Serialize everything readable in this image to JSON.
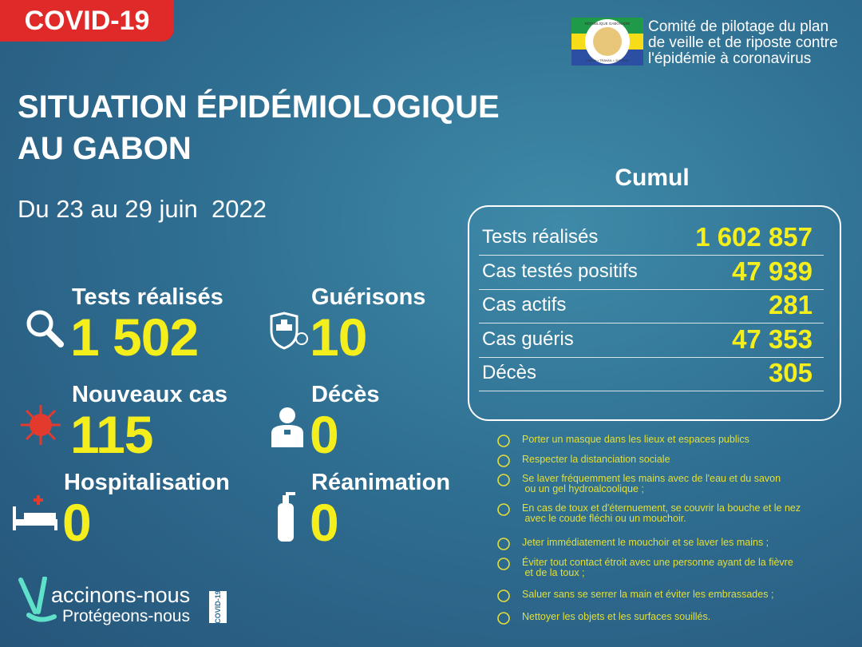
{
  "header": {
    "badge": "COVID-19",
    "seal": {
      "top": "RÉPUBLIQUE GABONAISE",
      "bottom": "UNION • TRAVAIL • JUSTICE"
    },
    "org": [
      "Comité de pilotage du plan",
      "de veille et de riposte contre",
      "l'épidémie à coronavirus"
    ]
  },
  "title": [
    "SITUATION ÉPIDÉMIOLOGIQUE",
    "AU GABON"
  ],
  "period": "Du 23 au 29 juin  2022",
  "stats": [
    {
      "label": "Tests réalisés",
      "value": "1 502"
    },
    {
      "label": "Guérisons",
      "value": "10"
    },
    {
      "label": "Nouveaux cas",
      "value": "115"
    },
    {
      "label": "Décès",
      "value": "0"
    },
    {
      "label": "Hospitalisation",
      "value": "0"
    },
    {
      "label": "Réanimation",
      "value": "0"
    }
  ],
  "cumul": {
    "title": "Cumul",
    "rows": [
      [
        "Tests réalisés",
        "1 602 857"
      ],
      [
        "Cas testés positifs",
        "47 939"
      ],
      [
        "Cas actifs",
        "281"
      ],
      [
        "Cas guéris",
        "47 353"
      ],
      [
        "Décès",
        "305"
      ]
    ]
  },
  "tips": [
    [
      "Porter un masque dans les lieux et espaces publics"
    ],
    [
      "Respecter la distanciation sociale"
    ],
    [
      "Se laver fréquemment les mains avec de l'eau et du savon",
      " ou un gel hydroalcoolique ;"
    ],
    [
      "En cas de toux et d'éternuement, se couvrir la bouche et le nez",
      " avec le coude fléchi ou un mouchoir."
    ],
    [
      "Jeter immédiatement le mouchoir et se laver les mains ;"
    ],
    [
      "Éviter tout contact étroit avec une personne ayant de la fièvre",
      " et de la toux ;"
    ],
    [
      "Saluer sans se serrer la main et éviter les embrassades ;"
    ],
    [
      "Nettoyer les objets et les surfaces souillés."
    ]
  ],
  "footer": {
    "line1": "accinons-nous",
    "line2": "Protégeons-nous",
    "tag": "COVID-19"
  }
}
